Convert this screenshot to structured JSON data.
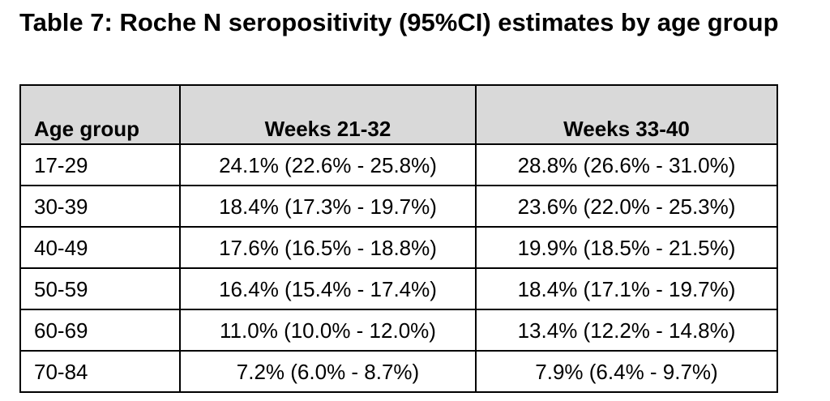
{
  "title": "Table 7: Roche N seropositivity (95%CI) estimates by age group",
  "table": {
    "headers": [
      "Age group",
      "Weeks 21-32",
      "Weeks 33-40"
    ],
    "rows": [
      [
        "17-29",
        "24.1% (22.6% - 25.8%)",
        "28.8% (26.6% - 31.0%)"
      ],
      [
        "30-39",
        "18.4% (17.3% - 19.7%)",
        "23.6% (22.0% - 25.3%)"
      ],
      [
        "40-49",
        "17.6% (16.5% - 18.8%)",
        "19.9% (18.5% - 21.5%)"
      ],
      [
        "50-59",
        "16.4% (15.4% - 17.4%)",
        "18.4% (17.1% - 19.7%)"
      ],
      [
        "60-69",
        "11.0% (10.0% - 12.0%)",
        "13.4% (12.2% - 14.8%)"
      ],
      [
        "70-84",
        "7.2% (6.0% - 8.7%)",
        "7.9% (6.4% - 9.7%)"
      ]
    ]
  },
  "colors": {
    "header_background": "#d9d9d9",
    "border": "#000000"
  }
}
